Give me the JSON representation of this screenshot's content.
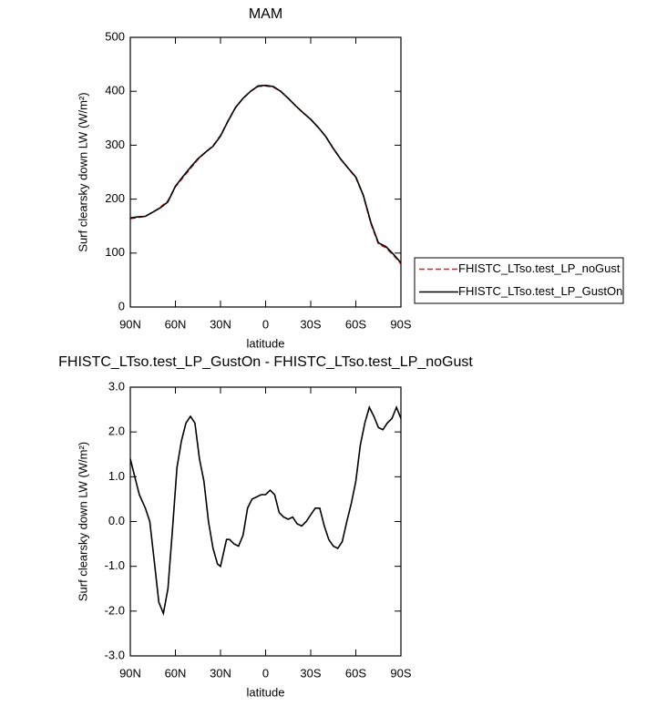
{
  "chart_data": [
    {
      "type": "line",
      "title": "MAM",
      "xlabel": "latitude",
      "ylabel": "Surf clearsky down LW (W/m²)",
      "x": [
        90,
        85,
        80,
        75,
        70,
        65,
        60,
        55,
        50,
        45,
        40,
        35,
        30,
        25,
        20,
        15,
        10,
        5,
        0,
        -5,
        -10,
        -15,
        -20,
        -25,
        -30,
        -35,
        -40,
        -45,
        -50,
        -55,
        -60,
        -65,
        -70,
        -75,
        -80,
        -85,
        -90
      ],
      "series": [
        {
          "name": "FHISTC_LTso.test_LP_noGust",
          "color": "#e41a1c",
          "dash": true,
          "values": [
            164,
            166,
            168,
            176,
            185,
            197,
            223,
            240,
            257,
            274,
            287,
            299,
            318,
            345,
            370,
            387,
            400,
            409,
            410,
            408,
            400,
            387,
            373,
            360,
            348,
            333,
            316,
            294,
            274,
            257,
            240,
            206,
            155,
            117,
            110,
            96,
            80
          ]
        },
        {
          "name": "FHISTC_LTso.test_LP_GustOn",
          "color": "#000000",
          "dash": false,
          "values": [
            165,
            167,
            168,
            176,
            184,
            195,
            224,
            242,
            259,
            275,
            287,
            298,
            317,
            345,
            370,
            387,
            400,
            410,
            411,
            409,
            400,
            387,
            373,
            360,
            348,
            333,
            316,
            294,
            274,
            257,
            241,
            207,
            157,
            119,
            112,
            98,
            82
          ]
        }
      ],
      "xlim": [
        90,
        -90
      ],
      "xticks": [
        {
          "value": 90,
          "label": "90N"
        },
        {
          "value": 60,
          "label": "60N"
        },
        {
          "value": 30,
          "label": "30N"
        },
        0,
        {
          "value": -30,
          "label": "30S"
        },
        {
          "value": -60,
          "label": "60S"
        },
        {
          "value": -90,
          "label": "90S"
        }
      ],
      "ylim": [
        0,
        500
      ],
      "yticks": [
        0,
        100,
        200,
        300,
        400,
        500
      ],
      "legend": "right"
    },
    {
      "type": "line",
      "title": "FHISTC_LTso.test_LP_GustOn - FHISTC_LTso.test_LP_noGust",
      "xlabel": "latitude",
      "ylabel": "Surf clearsky down LW (W/m²)",
      "x": [
        90,
        87,
        84,
        80,
        77,
        74,
        71,
        68,
        65,
        62,
        59,
        56,
        53,
        50,
        47,
        44,
        41,
        38,
        35,
        32,
        30,
        28,
        26,
        24,
        21,
        18,
        15,
        12,
        9,
        6,
        3,
        0,
        -3,
        -6,
        -9,
        -12,
        -15,
        -18,
        -21,
        -24,
        -27,
        -30,
        -33,
        -36,
        -39,
        -42,
        -45,
        -48,
        -51,
        -54,
        -57,
        -60,
        -63,
        -66,
        -69,
        -72,
        -75,
        -78,
        -81,
        -84,
        -87,
        -90
      ],
      "series": [
        {
          "color": "#000000",
          "dash": false,
          "values": [
            1.4,
            1.0,
            0.6,
            0.3,
            0.0,
            -0.9,
            -1.8,
            -2.05,
            -1.5,
            -0.2,
            1.2,
            1.8,
            2.2,
            2.35,
            2.2,
            1.4,
            0.9,
            0.0,
            -0.6,
            -0.95,
            -1.0,
            -0.7,
            -0.4,
            -0.4,
            -0.5,
            -0.55,
            -0.3,
            0.3,
            0.5,
            0.55,
            0.6,
            0.6,
            0.7,
            0.6,
            0.2,
            0.1,
            0.05,
            0.1,
            -0.05,
            -0.1,
            0.0,
            0.15,
            0.3,
            0.3,
            -0.1,
            -0.4,
            -0.55,
            -0.6,
            -0.45,
            0.0,
            0.4,
            0.9,
            1.7,
            2.2,
            2.55,
            2.35,
            2.1,
            2.05,
            2.2,
            2.3,
            2.55,
            2.3
          ]
        }
      ],
      "xlim": [
        90,
        -90
      ],
      "xticks": [
        {
          "value": 90,
          "label": "90N"
        },
        {
          "value": 60,
          "label": "60N"
        },
        {
          "value": 30,
          "label": "30N"
        },
        0,
        {
          "value": -30,
          "label": "30S"
        },
        {
          "value": -60,
          "label": "60S"
        },
        {
          "value": -90,
          "label": "90S"
        }
      ],
      "ylim": [
        -3,
        3
      ],
      "yticks": [
        {
          "value": -3,
          "label": "-3.0"
        },
        {
          "value": -2,
          "label": "-2.0"
        },
        {
          "value": -1,
          "label": "-1.0"
        },
        {
          "value": 0,
          "label": "0.0"
        },
        {
          "value": 1,
          "label": "1.0"
        },
        {
          "value": 2,
          "label": "2.0"
        },
        {
          "value": 3,
          "label": "3.0"
        }
      ]
    }
  ]
}
